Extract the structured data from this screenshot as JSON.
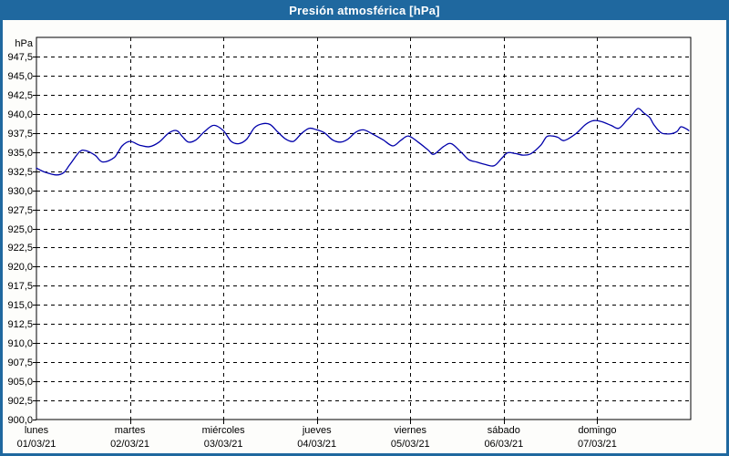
{
  "window": {
    "title": "Presión atmosférica [hPa]"
  },
  "colors": {
    "titlebar_bg": "#1F689F",
    "frame_border": "#1F689F",
    "title_text": "#FFFFFF",
    "content_bg": "#FDFDFB",
    "plot_bg": "#FFFFFF",
    "plot_border": "#000000",
    "grid": "#000000",
    "axis_text": "#000000",
    "line": "#0000AA"
  },
  "chart_data": {
    "type": "line",
    "title": "Presión atmosférica [hPa]",
    "legend": "none",
    "grid": "dashed",
    "y_axis": {
      "unit_label": "hPa",
      "min": 900,
      "max": 950,
      "tick_step": 2.5,
      "tick_labels_bottom_to_top": [
        "900,0",
        "902,5",
        "905,0",
        "907,5",
        "910,0",
        "912,5",
        "915,0",
        "917,5",
        "920,0",
        "922,5",
        "925,0",
        "927,5",
        "930,0",
        "932,5",
        "935,0",
        "937,5",
        "940,0",
        "942,5",
        "945,0",
        "947,5"
      ]
    },
    "x_axis": {
      "hours_total": 168,
      "day_labels": [
        {
          "weekday": "lunes",
          "date": "01/03/21"
        },
        {
          "weekday": "martes",
          "date": "02/03/21"
        },
        {
          "weekday": "miércoles",
          "date": "03/03/21"
        },
        {
          "weekday": "jueves",
          "date": "04/03/21"
        },
        {
          "weekday": "viernes",
          "date": "05/03/21"
        },
        {
          "weekday": "sábado",
          "date": "06/03/21"
        },
        {
          "weekday": "domingo",
          "date": "07/03/21"
        }
      ]
    },
    "series": [
      {
        "name": "Presión atmosférica",
        "color": "#0000AA",
        "points_hour_hpa": [
          [
            0,
            932.9
          ],
          [
            2,
            932.4
          ],
          [
            5,
            932.0
          ],
          [
            7,
            932.3
          ],
          [
            8.5,
            933.3
          ],
          [
            11,
            935.0
          ],
          [
            12.5,
            935.2
          ],
          [
            15,
            934.6
          ],
          [
            17,
            933.7
          ],
          [
            20,
            934.3
          ],
          [
            22,
            935.8
          ],
          [
            24,
            936.4
          ],
          [
            26.5,
            935.9
          ],
          [
            29,
            935.7
          ],
          [
            31.5,
            936.3
          ],
          [
            34,
            937.5
          ],
          [
            36,
            937.8
          ],
          [
            37.5,
            937.0
          ],
          [
            39,
            936.3
          ],
          [
            41,
            936.6
          ],
          [
            43,
            937.6
          ],
          [
            45.5,
            938.5
          ],
          [
            48,
            937.8
          ],
          [
            50,
            936.4
          ],
          [
            52,
            936.1
          ],
          [
            54,
            936.7
          ],
          [
            56,
            938.2
          ],
          [
            58,
            938.7
          ],
          [
            60,
            938.6
          ],
          [
            62,
            937.6
          ],
          [
            64,
            936.7
          ],
          [
            66,
            936.4
          ],
          [
            68,
            937.4
          ],
          [
            70,
            938.1
          ],
          [
            72,
            937.9
          ],
          [
            74,
            937.5
          ],
          [
            76,
            936.6
          ],
          [
            78,
            936.3
          ],
          [
            80,
            936.7
          ],
          [
            82,
            937.6
          ],
          [
            84,
            937.9
          ],
          [
            86.5,
            937.3
          ],
          [
            89,
            936.6
          ],
          [
            91.5,
            935.8
          ],
          [
            93.5,
            936.5
          ],
          [
            95.5,
            937.1
          ],
          [
            98,
            936.3
          ],
          [
            100.5,
            935.3
          ],
          [
            102,
            934.7
          ],
          [
            104.5,
            935.7
          ],
          [
            106.5,
            936.1
          ],
          [
            109,
            935.0
          ],
          [
            111,
            934.0
          ],
          [
            113,
            933.7
          ],
          [
            115,
            933.4
          ],
          [
            117.5,
            933.2
          ],
          [
            119.5,
            934.2
          ],
          [
            121,
            934.9
          ],
          [
            123,
            934.8
          ],
          [
            125,
            934.6
          ],
          [
            127,
            934.8
          ],
          [
            129.5,
            935.9
          ],
          [
            131,
            937.0
          ],
          [
            132.5,
            937.1
          ],
          [
            134,
            936.9
          ],
          [
            135.5,
            936.5
          ],
          [
            138.5,
            937.4
          ],
          [
            141,
            938.6
          ],
          [
            143,
            939.1
          ],
          [
            145,
            939.0
          ],
          [
            147.5,
            938.5
          ],
          [
            149.5,
            938.1
          ],
          [
            151.5,
            939.1
          ],
          [
            153,
            939.9
          ],
          [
            154.5,
            940.7
          ],
          [
            156,
            940.1
          ],
          [
            157.5,
            939.5
          ],
          [
            158.5,
            938.6
          ],
          [
            160.5,
            937.5
          ],
          [
            163,
            937.4
          ],
          [
            164.5,
            937.7
          ],
          [
            165.5,
            938.3
          ],
          [
            167,
            938.0
          ],
          [
            167.5,
            937.8
          ]
        ]
      }
    ],
    "ylim": [
      900,
      950
    ]
  }
}
